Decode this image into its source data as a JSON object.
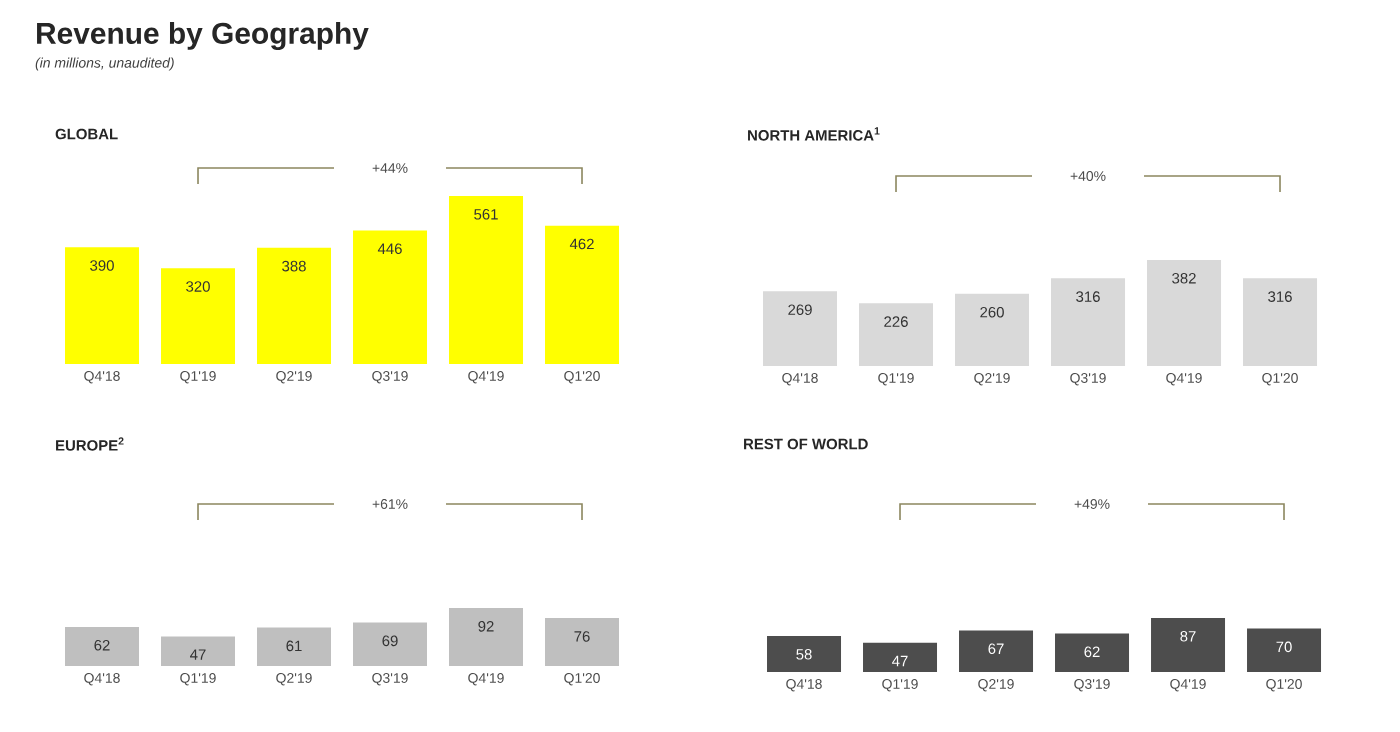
{
  "chart_data": [
    {
      "type": "other",
      "title": "Revenue by Geography",
      "subtitle": "(in millions, unaudited)"
    },
    {
      "type": "bar",
      "title": "GLOBAL",
      "categories": [
        "Q4'18",
        "Q1'19",
        "Q2'19",
        "Q3'19",
        "Q4'19",
        "Q1'20"
      ],
      "values": [
        390,
        320,
        388,
        446,
        561,
        462
      ],
      "color": "#ffff00",
      "data_labels": true,
      "annotations": [
        "+44%"
      ]
    },
    {
      "type": "bar",
      "title": "NORTH AMERICA$^{1}$",
      "categories": [
        "Q4'18",
        "Q1'19",
        "Q2'19",
        "Q3'19",
        "Q4'19",
        "Q1'20"
      ],
      "values": [
        269,
        226,
        260,
        316,
        382,
        316
      ],
      "color": "#d9d9d9",
      "data_labels": true,
      "annotations": [
        "+40%"
      ]
    },
    {
      "type": "bar",
      "title": "EUROPE$^{2}$",
      "categories": [
        "Q4'18",
        "Q1'19",
        "Q2'19",
        "Q3'19",
        "Q4'19",
        "Q1'20"
      ],
      "values": [
        62,
        47,
        61,
        69,
        92,
        76
      ],
      "color": "#bfbfbf",
      "data_labels": true,
      "annotations": [
        "+61%"
      ]
    },
    {
      "type": "bar",
      "title": "REST OF WORLD",
      "categories": [
        "Q4'18",
        "Q1'19",
        "Q2'19",
        "Q3'19",
        "Q4'19",
        "Q1'20"
      ],
      "values": [
        58,
        47,
        67,
        62,
        87,
        70
      ],
      "color": "#4d4d4d",
      "data_labels": true,
      "annotations": [
        "+49%"
      ]
    }
  ]
}
